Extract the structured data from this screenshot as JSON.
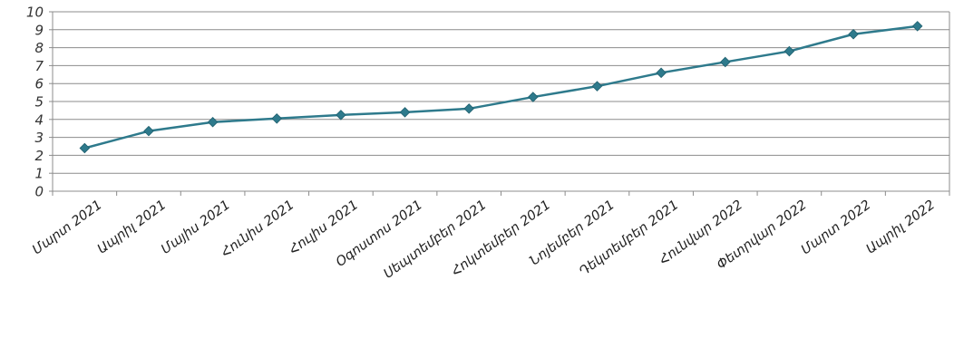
{
  "chart_data": {
    "type": "line",
    "title": "",
    "xlabel": "",
    "ylabel": "",
    "categories": [
      "Մարտ 2021",
      "Ապրիլ 2021",
      "Մայիս 2021",
      "Հունիս  2021",
      "Հուլիս 2021",
      "Օգոստոս  2021",
      "Սեպտեմբեր  2021",
      "Հոկտեմբեր  2021",
      "Նոյեմբեր 2021",
      "Դեկտեմբեր 2021",
      "Հունվար 2022",
      "Փետրվար 2022",
      "Մարտ 2022",
      "Ապրիլ 2022"
    ],
    "series": [
      {
        "values": [
          2.4,
          3.35,
          3.85,
          4.05,
          4.25,
          4.4,
          4.6,
          5.25,
          5.85,
          6.6,
          7.2,
          7.8,
          8.75,
          9.2
        ]
      }
    ],
    "ylim": [
      0,
      10
    ],
    "yticks": [
      "0",
      "1",
      "2",
      "3",
      "4",
      "5",
      "6",
      "7",
      "8",
      "9",
      "10"
    ],
    "grid": true,
    "legend": "none",
    "colors": {
      "line": "#2e7a8c",
      "marker": "#2e7a8c",
      "grid": "#8c8c8c",
      "axis": "#8c8c8c"
    }
  }
}
